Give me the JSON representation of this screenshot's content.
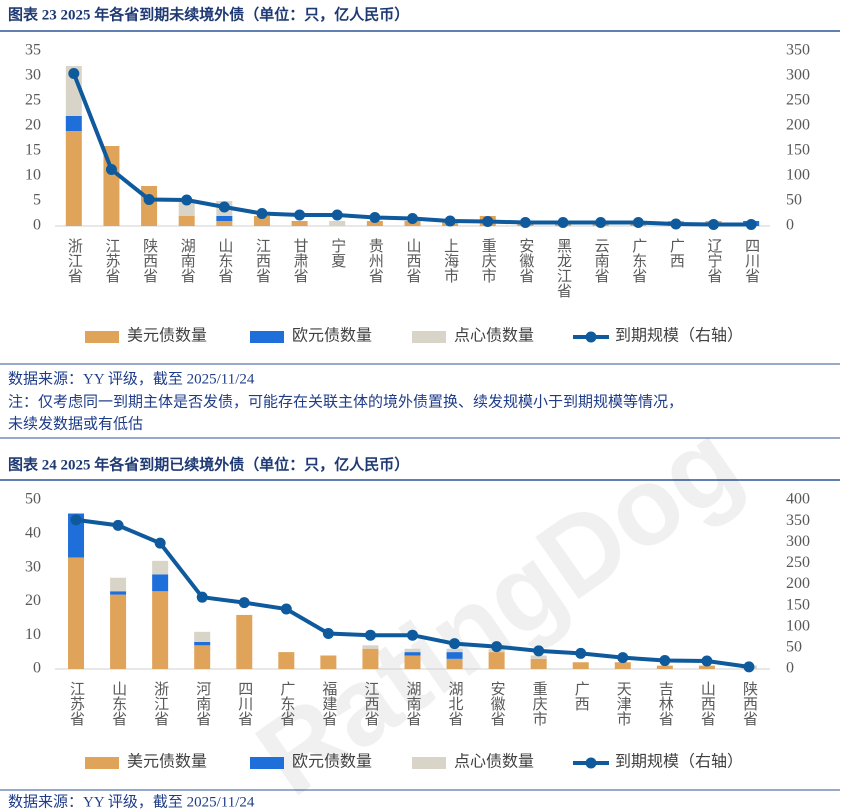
{
  "chart_data": [
    {
      "type": "bar",
      "stacked": true,
      "title": "图表 23 2025 年各省到期未续境外债（单位：只，亿人民币）",
      "categories": [
        "浙江省",
        "江苏省",
        "陕西省",
        "湖南省",
        "山东省",
        "江西省",
        "甘肃省",
        "宁夏",
        "贵州省",
        "山西省",
        "上海市",
        "重庆市",
        "安徽省",
        "黑龙江省",
        "云南省",
        "广东省",
        "广西",
        "辽宁省",
        "四川省"
      ],
      "series": [
        {
          "name": "美元债数量",
          "color": "#E0A35A",
          "values": [
            19,
            16,
            8,
            2,
            1,
            2,
            1,
            0,
            1,
            1,
            1,
            2,
            1,
            1,
            1,
            1,
            1,
            1,
            0
          ]
        },
        {
          "name": "欧元债数量",
          "color": "#1F6FDB",
          "values": [
            3,
            0,
            0,
            0,
            1,
            0,
            0,
            0,
            0,
            0,
            0,
            0,
            0,
            0,
            0,
            0,
            0,
            0,
            1
          ]
        },
        {
          "name": "点心债数量",
          "color": "#D9D4C8",
          "values": [
            10,
            0,
            0,
            3,
            3,
            0,
            0,
            1,
            0,
            0,
            0,
            0,
            0,
            0,
            0,
            0,
            0,
            0,
            0
          ]
        },
        {
          "name": "到期规模（右轴）",
          "color": "#0E5A9C",
          "type": "line",
          "axis": "y2",
          "values": [
            305,
            113,
            53,
            52,
            38,
            25,
            22,
            22,
            17,
            15,
            10,
            9,
            7,
            7,
            7,
            7,
            4,
            3,
            3
          ]
        }
      ],
      "ylim": [
        0,
        35
      ],
      "yticks": [
        0,
        5,
        10,
        15,
        20,
        25,
        30,
        35
      ],
      "y2lim": [
        0,
        350
      ],
      "y2ticks": [
        0,
        50,
        100,
        150,
        200,
        250,
        300,
        350
      ]
    },
    {
      "type": "bar",
      "stacked": true,
      "title": "图表 24 2025 年各省到期已续境外债（单位：只，亿人民币）",
      "categories": [
        "江苏省",
        "山东省",
        "浙江省",
        "河南省",
        "四川省",
        "广东省",
        "福建省",
        "江西省",
        "湖南省",
        "湖北省",
        "安徽省",
        "重庆市",
        "广西",
        "天津市",
        "吉林省",
        "山西省",
        "陕西省"
      ],
      "series": [
        {
          "name": "美元债数量",
          "color": "#E0A35A",
          "values": [
            33,
            22,
            23,
            7,
            16,
            5,
            4,
            6,
            4,
            3,
            5,
            3,
            2,
            2,
            1,
            1,
            0
          ]
        },
        {
          "name": "欧元债数量",
          "color": "#1F6FDB",
          "values": [
            13,
            1,
            5,
            1,
            0,
            0,
            0,
            0,
            1,
            2,
            0,
            0,
            0,
            0,
            0,
            0,
            0
          ]
        },
        {
          "name": "点心债数量",
          "color": "#D9D4C8",
          "values": [
            0,
            4,
            4,
            3,
            0,
            0,
            0,
            1,
            1,
            1,
            1,
            1,
            0,
            0,
            0,
            0,
            1
          ]
        },
        {
          "name": "到期规模（右轴）",
          "color": "#0E5A9C",
          "type": "line",
          "axis": "y2",
          "values": [
            353,
            340,
            298,
            170,
            157,
            142,
            84,
            80,
            80,
            60,
            53,
            43,
            37,
            27,
            20,
            19,
            5
          ]
        }
      ],
      "ylim": [
        0,
        50
      ],
      "yticks": [
        0,
        10,
        20,
        30,
        40,
        50
      ],
      "y2lim": [
        0,
        400
      ],
      "y2ticks": [
        0,
        50,
        100,
        150,
        200,
        250,
        300,
        350,
        400
      ]
    }
  ],
  "footnotes": [
    "数据来源：YY 评级，截至 2025/11/24",
    "注：仅考虑同一到期主体是否发债，可能存在关联主体的境外债置换、续发规模小于到期规模等情况，",
    "未续发数据或有低估",
    "数据来源：YY 评级，截至 2025/11/24"
  ],
  "watermark": "RatingDog"
}
